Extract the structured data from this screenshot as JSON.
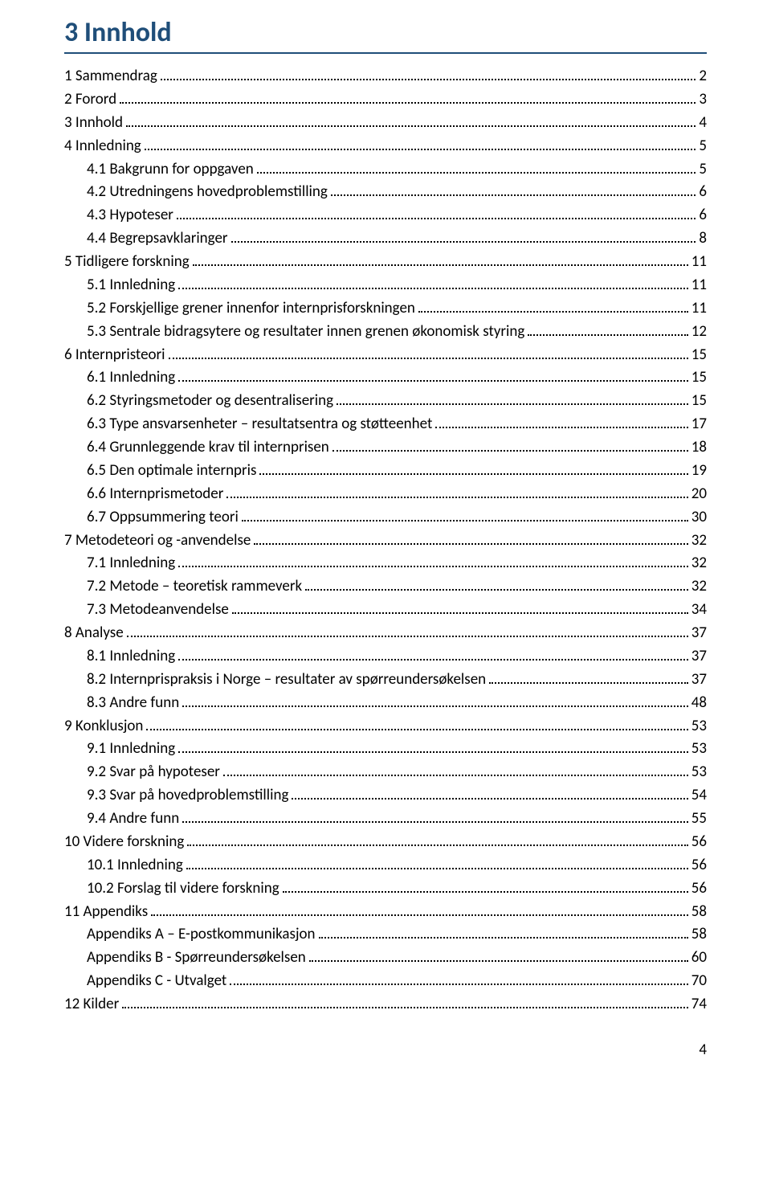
{
  "title": "3 Innhold",
  "title_color": "#1f4e79",
  "underline_color": "#1f4e79",
  "text_color": "#000000",
  "dot_color": "#000000",
  "page_footer": "4",
  "toc": [
    {
      "label": "1 Sammendrag",
      "page": "2",
      "level": 0
    },
    {
      "label": "2 Forord",
      "page": "3",
      "level": 0
    },
    {
      "label": "3 Innhold",
      "page": "4",
      "level": 0
    },
    {
      "label": "4 Innledning",
      "page": "5",
      "level": 0
    },
    {
      "label": "4.1 Bakgrunn for oppgaven",
      "page": "5",
      "level": 1
    },
    {
      "label": "4.2 Utredningens hovedproblemstilling",
      "page": "6",
      "level": 1
    },
    {
      "label": "4.3 Hypoteser",
      "page": "6",
      "level": 1
    },
    {
      "label": "4.4 Begrepsavklaringer",
      "page": "8",
      "level": 1
    },
    {
      "label": "5 Tidligere forskning",
      "page": "11",
      "level": 0
    },
    {
      "label": "5.1 Innledning",
      "page": "11",
      "level": 1
    },
    {
      "label": "5.2 Forskjellige grener innenfor internprisforskningen",
      "page": "11",
      "level": 1
    },
    {
      "label": "5.3 Sentrale bidragsytere og resultater innen grenen økonomisk styring",
      "page": "12",
      "level": 1
    },
    {
      "label": "6 Internpristeori",
      "page": "15",
      "level": 0
    },
    {
      "label": "6.1 Innledning",
      "page": "15",
      "level": 1
    },
    {
      "label": "6.2 Styringsmetoder og desentralisering",
      "page": "15",
      "level": 1
    },
    {
      "label": "6.3 Type ansvarsenheter – resultatsentra og støtteenhet",
      "page": "17",
      "level": 1
    },
    {
      "label": "6.4 Grunnleggende krav til internprisen",
      "page": "18",
      "level": 1
    },
    {
      "label": "6.5 Den optimale internpris",
      "page": "19",
      "level": 1
    },
    {
      "label": "6.6 Internprismetoder",
      "page": "20",
      "level": 1
    },
    {
      "label": "6.7 Oppsummering teori",
      "page": "30",
      "level": 1
    },
    {
      "label": "7 Metodeteori og -anvendelse",
      "page": "32",
      "level": 0
    },
    {
      "label": "7.1 Innledning",
      "page": "32",
      "level": 1
    },
    {
      "label": "7.2 Metode – teoretisk rammeverk",
      "page": "32",
      "level": 1
    },
    {
      "label": "7.3 Metodeanvendelse",
      "page": "34",
      "level": 1
    },
    {
      "label": "8 Analyse",
      "page": "37",
      "level": 0
    },
    {
      "label": "8.1 Innledning",
      "page": "37",
      "level": 1
    },
    {
      "label": "8.2 Internprispraksis i Norge – resultater av spørreundersøkelsen",
      "page": "37",
      "level": 1
    },
    {
      "label": "8.3 Andre funn",
      "page": "48",
      "level": 1
    },
    {
      "label": "9 Konklusjon",
      "page": "53",
      "level": 0
    },
    {
      "label": "9.1 Innledning",
      "page": "53",
      "level": 1
    },
    {
      "label": "9.2 Svar på hypoteser",
      "page": "53",
      "level": 1
    },
    {
      "label": "9.3 Svar på hovedproblemstilling",
      "page": "54",
      "level": 1
    },
    {
      "label": "9.4 Andre funn",
      "page": "55",
      "level": 1
    },
    {
      "label": "10 Videre forskning",
      "page": "56",
      "level": 0
    },
    {
      "label": "10.1 Innledning",
      "page": "56",
      "level": 1
    },
    {
      "label": "10.2 Forslag til videre forskning",
      "page": "56",
      "level": 1
    },
    {
      "label": "11 Appendiks",
      "page": "58",
      "level": 0
    },
    {
      "label": "Appendiks A – E-postkommunikasjon",
      "page": "58",
      "level": 1
    },
    {
      "label": "Appendiks B - Spørreundersøkelsen",
      "page": "60",
      "level": 1
    },
    {
      "label": "Appendiks C - Utvalget",
      "page": "70",
      "level": 1
    },
    {
      "label": "12 Kilder",
      "page": "74",
      "level": 0
    }
  ]
}
